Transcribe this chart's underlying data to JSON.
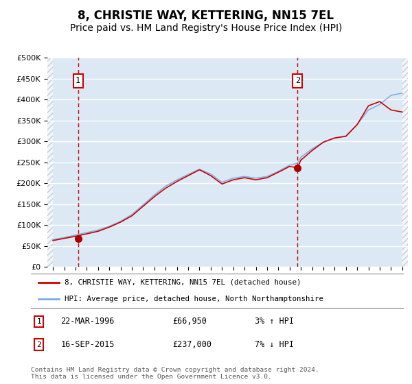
{
  "title": "8, CHRISTIE WAY, KETTERING, NN15 7EL",
  "subtitle": "Price paid vs. HM Land Registry's House Price Index (HPI)",
  "title_fontsize": 12,
  "subtitle_fontsize": 10,
  "ylim": [
    0,
    500000
  ],
  "yticks": [
    0,
    50000,
    100000,
    150000,
    200000,
    250000,
    300000,
    350000,
    400000,
    450000,
    500000
  ],
  "ytick_labels": [
    "£0",
    "£50K",
    "£100K",
    "£150K",
    "£200K",
    "£250K",
    "£300K",
    "£350K",
    "£400K",
    "£450K",
    "£500K"
  ],
  "xlim_start": 1994.0,
  "xlim_end": 2025.5,
  "background_color": "#dce9f5",
  "grid_color": "#ffffff",
  "line_red_color": "#cc0000",
  "line_blue_color": "#7aaadd",
  "dot_color": "#aa0000",
  "vline_color": "#cc0000",
  "sale1_year": 1996.22,
  "sale1_value": 66950,
  "sale2_year": 2015.71,
  "sale2_value": 237000,
  "legend_label_red": "8, CHRISTIE WAY, KETTERING, NN15 7EL (detached house)",
  "legend_label_blue": "HPI: Average price, detached house, North Northamptonshire",
  "sale1_date": "22-MAR-1996",
  "sale1_price": "£66,950",
  "sale1_hpi": "3% ↑ HPI",
  "sale2_date": "16-SEP-2015",
  "sale2_price": "£237,000",
  "sale2_hpi": "7% ↓ HPI",
  "footer": "Contains HM Land Registry data © Crown copyright and database right 2024.\nThis data is licensed under the Open Government Licence v3.0."
}
